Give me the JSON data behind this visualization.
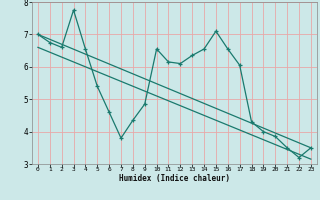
{
  "title": "",
  "xlabel": "Humidex (Indice chaleur)",
  "bg_color": "#cce8e8",
  "grid_color": "#e8a8a8",
  "line_color": "#1a7a6e",
  "xlim": [
    -0.5,
    23.5
  ],
  "ylim": [
    3,
    8
  ],
  "yticks": [
    3,
    4,
    5,
    6,
    7,
    8
  ],
  "xticks": [
    0,
    1,
    2,
    3,
    4,
    5,
    6,
    7,
    8,
    9,
    10,
    11,
    12,
    13,
    14,
    15,
    16,
    17,
    18,
    19,
    20,
    21,
    22,
    23
  ],
  "scatter_x": [
    0,
    1,
    2,
    3,
    4,
    5,
    6,
    7,
    8,
    9,
    10,
    11,
    12,
    13,
    14,
    15,
    16,
    17,
    18,
    19,
    20,
    21,
    22,
    23
  ],
  "scatter_y": [
    7.0,
    6.75,
    6.6,
    7.75,
    6.55,
    5.4,
    4.6,
    3.8,
    4.35,
    4.85,
    6.55,
    6.15,
    6.1,
    6.35,
    6.55,
    7.1,
    6.55,
    6.05,
    4.3,
    4.0,
    3.85,
    3.5,
    3.2,
    3.5
  ],
  "line1_x": [
    0,
    23
  ],
  "line1_y": [
    7.0,
    3.5
  ],
  "line2_x": [
    0,
    23
  ],
  "line2_y": [
    6.6,
    3.15
  ]
}
